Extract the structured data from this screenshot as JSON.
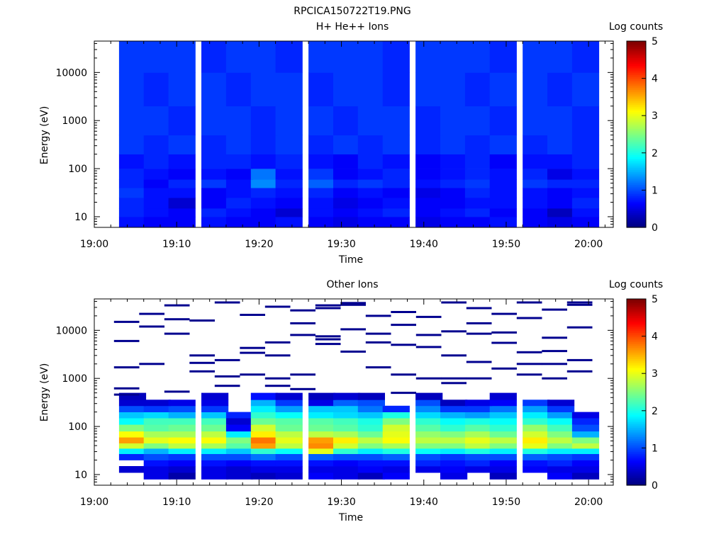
{
  "figure_title": "RPCICA150722T19.PNG",
  "chart_data": [
    {
      "type": "heatmap",
      "title": "H+ He++ Ions",
      "xlabel": "Time",
      "ylabel": "Energy (eV)",
      "yscale": "log",
      "xlim": [
        "19:00",
        "20:03"
      ],
      "ylim": [
        6,
        45000
      ],
      "x_ticks": [
        "19:00",
        "19:10",
        "19:20",
        "19:30",
        "19:40",
        "19:50",
        "20:00"
      ],
      "y_ticks": [
        "10",
        "100",
        "1000",
        "10000"
      ],
      "colorbar": {
        "label": "Log counts",
        "range": [
          0,
          5
        ],
        "ticks": [
          "0",
          "1",
          "2",
          "3",
          "4",
          "5"
        ],
        "colormap": "jet"
      },
      "grid": false,
      "time_bins": [
        "19:03",
        "19:06",
        "19:09",
        "19:13",
        "19:16",
        "19:19",
        "19:22",
        "19:26",
        "19:29",
        "19:32",
        "19:35",
        "19:39",
        "19:42",
        "19:45",
        "19:48",
        "19:52",
        "19:55",
        "19:58"
      ],
      "energy_bands": [
        {
          "lo": 6,
          "hi": 10,
          "values": [
            0.7,
            0.6,
            0.6,
            0.7,
            0.6,
            0.6,
            0.7,
            0.6,
            0.5,
            0.6,
            0.6,
            0.5,
            0.6,
            0.6,
            0.7,
            0.6,
            0.5,
            0.6
          ]
        },
        {
          "lo": 10,
          "hi": 15,
          "values": [
            0.8,
            0.7,
            0.6,
            0.8,
            0.7,
            0.6,
            0.4,
            0.7,
            0.6,
            0.7,
            0.8,
            0.6,
            0.7,
            0.8,
            0.6,
            0.6,
            0.3,
            0.7
          ]
        },
        {
          "lo": 15,
          "hi": 25,
          "values": [
            0.8,
            0.7,
            0.4,
            0.6,
            0.8,
            0.7,
            0.6,
            0.7,
            0.5,
            0.6,
            0.7,
            0.6,
            0.6,
            0.7,
            0.7,
            0.7,
            0.6,
            0.8
          ]
        },
        {
          "lo": 25,
          "hi": 40,
          "values": [
            0.9,
            0.7,
            0.7,
            0.6,
            0.7,
            0.8,
            0.7,
            0.8,
            0.6,
            0.7,
            0.6,
            0.5,
            0.6,
            0.8,
            0.7,
            0.7,
            0.6,
            0.7
          ]
        },
        {
          "lo": 40,
          "hi": 60,
          "values": [
            0.8,
            0.6,
            0.8,
            0.9,
            0.7,
            1.3,
            0.8,
            1.1,
            0.8,
            0.9,
            0.8,
            0.7,
            0.8,
            0.9,
            0.7,
            0.9,
            0.8,
            0.8
          ]
        },
        {
          "lo": 60,
          "hi": 100,
          "values": [
            0.8,
            0.7,
            0.6,
            0.7,
            0.6,
            1.2,
            0.7,
            0.9,
            0.6,
            0.7,
            0.8,
            0.6,
            0.7,
            0.8,
            0.7,
            0.8,
            0.5,
            0.7
          ]
        },
        {
          "lo": 100,
          "hi": 200,
          "values": [
            0.7,
            0.8,
            0.7,
            0.8,
            0.8,
            0.7,
            0.8,
            0.7,
            0.6,
            0.8,
            0.7,
            0.6,
            0.7,
            0.8,
            0.6,
            0.7,
            0.7,
            0.8
          ]
        },
        {
          "lo": 200,
          "hi": 500,
          "values": [
            0.9,
            0.8,
            0.9,
            0.8,
            0.9,
            0.8,
            0.9,
            0.8,
            0.9,
            0.8,
            0.9,
            0.8,
            0.9,
            0.8,
            0.9,
            0.8,
            0.9,
            0.8
          ]
        },
        {
          "lo": 500,
          "hi": 2000,
          "values": [
            0.9,
            0.9,
            0.8,
            0.9,
            0.9,
            0.8,
            0.9,
            0.9,
            0.8,
            0.9,
            0.9,
            0.8,
            0.9,
            0.9,
            0.8,
            0.9,
            0.9,
            0.8
          ]
        },
        {
          "lo": 2000,
          "hi": 10000,
          "values": [
            0.9,
            0.8,
            0.9,
            0.9,
            0.8,
            0.9,
            0.9,
            0.8,
            0.9,
            0.9,
            0.8,
            0.9,
            0.9,
            0.8,
            0.9,
            0.9,
            0.8,
            0.9
          ]
        },
        {
          "lo": 10000,
          "hi": 45000,
          "values": [
            0.9,
            0.9,
            0.9,
            0.8,
            0.9,
            0.9,
            0.8,
            0.9,
            0.9,
            0.9,
            0.8,
            0.9,
            0.9,
            0.9,
            0.8,
            0.9,
            0.9,
            0.8
          ]
        }
      ]
    },
    {
      "type": "heatmap",
      "title": "Other Ions",
      "xlabel": "Time",
      "ylabel": "Energy (eV)",
      "yscale": "log",
      "xlim": [
        "19:00",
        "20:03"
      ],
      "ylim": [
        6,
        45000
      ],
      "x_ticks": [
        "19:00",
        "19:10",
        "19:20",
        "19:30",
        "19:40",
        "19:50",
        "20:00"
      ],
      "y_ticks": [
        "10",
        "100",
        "1000",
        "10000"
      ],
      "colorbar": {
        "label": "Log counts",
        "range": [
          0,
          5
        ],
        "ticks": [
          "0",
          "1",
          "2",
          "3",
          "4",
          "5"
        ],
        "colormap": "jet"
      },
      "grid": false,
      "time_bins": [
        "19:03",
        "19:06",
        "19:09",
        "19:13",
        "19:16",
        "19:19",
        "19:22",
        "19:26",
        "19:29",
        "19:32",
        "19:35",
        "19:39",
        "19:42",
        "19:45",
        "19:48",
        "19:52",
        "19:55",
        "19:58"
      ],
      "energy_bands": [
        {
          "lo": 8,
          "hi": 11,
          "values": [
            null,
            0.5,
            0.2,
            0.5,
            0.4,
            0.3,
            0.4,
            0.6,
            0.5,
            0.3,
            0.6,
            null,
            0.5,
            null,
            0.3,
            null,
            0.6,
            0.3
          ]
        },
        {
          "lo": 11,
          "hi": 15,
          "values": [
            0.4,
            0.5,
            0.4,
            0.5,
            0.4,
            0.5,
            0.5,
            0.5,
            0.5,
            0.6,
            0.5,
            0.5,
            0.6,
            0.5,
            0.5,
            0.6,
            0.5,
            0.5
          ]
        },
        {
          "lo": 15,
          "hi": 20,
          "values": [
            null,
            0.7,
            0.6,
            0.7,
            0.6,
            0.7,
            0.7,
            0.7,
            0.6,
            0.7,
            0.7,
            0.8,
            0.7,
            0.8,
            0.6,
            0.7,
            0.8,
            0.6
          ]
        },
        {
          "lo": 20,
          "hi": 27,
          "values": [
            0.8,
            1.0,
            0.9,
            1.0,
            1.0,
            1.2,
            1.0,
            1.1,
            1.0,
            1.0,
            1.1,
            1.0,
            0.9,
            1.0,
            1.0,
            1.1,
            1.0,
            0.9
          ]
        },
        {
          "lo": 27,
          "hi": 35,
          "values": [
            1.8,
            1.5,
            1.8,
            1.8,
            1.6,
            2.1,
            1.9,
            3.0,
            2.1,
            1.8,
            2.0,
            1.9,
            1.8,
            2.0,
            1.8,
            2.0,
            1.8,
            1.8
          ]
        },
        {
          "lo": 35,
          "hi": 45,
          "values": [
            2.9,
            2.5,
            2.8,
            2.7,
            2.3,
            3.6,
            2.8,
            3.7,
            2.9,
            2.5,
            2.7,
            2.5,
            2.5,
            2.8,
            2.5,
            3.0,
            2.5,
            2.8
          ]
        },
        {
          "lo": 45,
          "hi": 60,
          "values": [
            3.6,
            3.0,
            3.1,
            3.1,
            2.5,
            3.8,
            3.0,
            3.6,
            3.2,
            2.8,
            3.1,
            2.8,
            2.8,
            3.0,
            2.8,
            3.2,
            2.8,
            2.5
          ]
        },
        {
          "lo": 60,
          "hi": 80,
          "values": [
            3.1,
            2.7,
            2.7,
            2.8,
            1.8,
            3.2,
            2.8,
            2.8,
            2.7,
            2.4,
            3.0,
            2.6,
            2.5,
            2.7,
            2.4,
            2.9,
            2.5,
            1.5
          ]
        },
        {
          "lo": 80,
          "hi": 110,
          "values": [
            2.5,
            2.3,
            2.4,
            2.4,
            0.6,
            2.9,
            2.4,
            2.4,
            2.3,
            2.1,
            2.9,
            2.3,
            2.1,
            2.3,
            2.1,
            2.6,
            2.2,
            1.0
          ]
        },
        {
          "lo": 110,
          "hi": 150,
          "values": [
            1.9,
            2.2,
            2.2,
            2.2,
            0.4,
            2.4,
            2.3,
            2.3,
            2.2,
            2.0,
            2.5,
            2.1,
            1.9,
            2.0,
            1.9,
            2.1,
            1.9,
            0.8
          ]
        },
        {
          "lo": 150,
          "hi": 200,
          "values": [
            1.6,
            1.7,
            1.5,
            1.6,
            0.8,
            2.1,
            1.9,
            1.8,
            1.7,
            1.6,
            2.0,
            1.7,
            1.5,
            1.4,
            1.6,
            1.8,
            1.4,
            0.5
          ]
        },
        {
          "lo": 200,
          "hi": 270,
          "values": [
            1.0,
            0.9,
            1.0,
            0.9,
            null,
            1.8,
            1.4,
            1.6,
            1.6,
            1.2,
            0.8,
            1.3,
            0.9,
            0.9,
            1.2,
            1.4,
            0.9,
            null
          ]
        },
        {
          "lo": 270,
          "hi": 360,
          "values": [
            0.4,
            0.4,
            0.5,
            0.5,
            null,
            1.5,
            0.9,
            0.5,
            1.1,
            1.0,
            null,
            1.0,
            0.3,
            0.5,
            0.6,
            0.9,
            0.4,
            null
          ]
        },
        {
          "lo": 360,
          "hi": 500,
          "values": [
            0.3,
            null,
            null,
            0.4,
            null,
            0.7,
            0.4,
            0.3,
            0.4,
            0.3,
            null,
            0.3,
            null,
            null,
            0.4,
            null,
            null,
            null
          ]
        }
      ],
      "sparse_lines_eV": [
        [
          15000,
          6000,
          1700,
          620,
          460
        ],
        [
          22000,
          12000,
          2000
        ],
        [
          33000,
          17000,
          8500,
          530
        ],
        [
          16000,
          3000,
          2100,
          1400
        ],
        [
          38000,
          2400,
          1100,
          700
        ],
        [
          21000,
          4300,
          3400,
          1200
        ],
        [
          31000,
          5600,
          3000,
          1000,
          700
        ],
        [
          26000,
          14000,
          8000,
          1200,
          600
        ],
        [
          33000,
          29000,
          7500,
          6500,
          5200
        ],
        [
          37000,
          34000,
          10500,
          3600
        ],
        [
          20000,
          8500,
          5600,
          1700
        ],
        [
          24000,
          13000,
          5000,
          1200,
          500
        ],
        [
          19000,
          8000,
          4500,
          1000
        ],
        [
          38000,
          9500,
          3000,
          1000,
          800
        ],
        [
          29000,
          14000,
          8500,
          2200,
          1000
        ],
        [
          22000,
          9000,
          5500,
          1600
        ],
        [
          38000,
          18000,
          3500,
          2000,
          1200
        ],
        [
          27000,
          7000,
          3700,
          2000,
          1000
        ],
        [
          38000,
          34000,
          11500,
          2400,
          1400
        ]
      ]
    }
  ]
}
